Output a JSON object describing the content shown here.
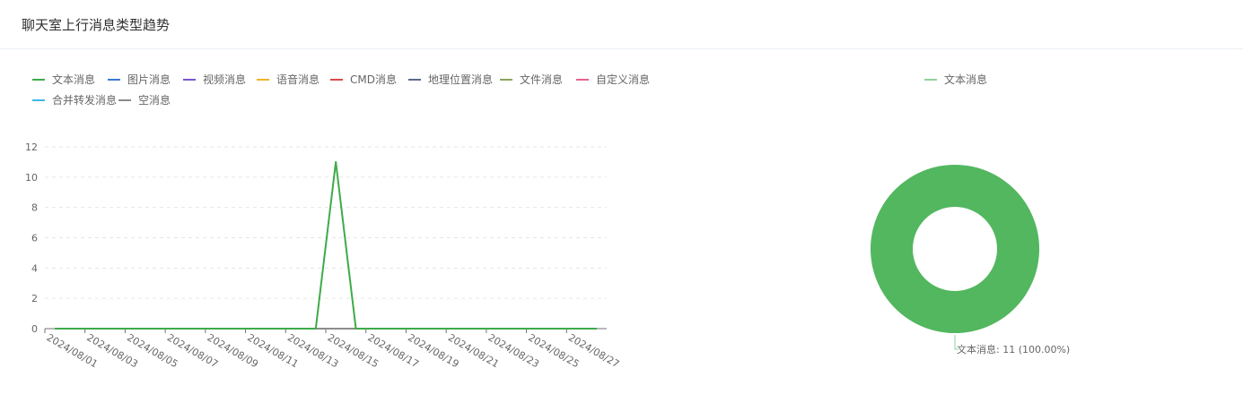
{
  "page": {
    "title": "聊天室上行消息类型趋势"
  },
  "legend": [
    {
      "label": "文本消息",
      "color": "#3eab49"
    },
    {
      "label": "图片消息",
      "color": "#3a7bd5"
    },
    {
      "label": "视频消息",
      "color": "#7a57d1"
    },
    {
      "label": "语音消息",
      "color": "#f0b429"
    },
    {
      "label": "CMD消息",
      "color": "#e04848"
    },
    {
      "label": "地理位置消息",
      "color": "#5a6b8c"
    },
    {
      "label": "文件消息",
      "color": "#8aa65a"
    },
    {
      "label": "自定义消息",
      "color": "#e8638f"
    },
    {
      "label": "合并转发消息",
      "color": "#3cb9e8"
    },
    {
      "label": "空消息",
      "color": "#8c8c8c"
    }
  ],
  "chart_data": [
    {
      "type": "line",
      "x": [
        "2024/08/01",
        "2024/08/02",
        "2024/08/03",
        "2024/08/04",
        "2024/08/05",
        "2024/08/06",
        "2024/08/07",
        "2024/08/08",
        "2024/08/09",
        "2024/08/10",
        "2024/08/11",
        "2024/08/12",
        "2024/08/13",
        "2024/08/14",
        "2024/08/15",
        "2024/08/16",
        "2024/08/17",
        "2024/08/18",
        "2024/08/19",
        "2024/08/20",
        "2024/08/21",
        "2024/08/22",
        "2024/08/23",
        "2024/08/24",
        "2024/08/25",
        "2024/08/26",
        "2024/08/27",
        "2024/08/28"
      ],
      "x_tick_labels": [
        "2024/08/01",
        "2024/08/03",
        "2024/08/05",
        "2024/08/07",
        "2024/08/09",
        "2024/08/11",
        "2024/08/13",
        "2024/08/15",
        "2024/08/17",
        "2024/08/19",
        "2024/08/21",
        "2024/08/23",
        "2024/08/25",
        "2024/08/27"
      ],
      "y_ticks": [
        0,
        2,
        4,
        6,
        8,
        10,
        12
      ],
      "ylim": [
        0,
        12
      ],
      "grid": true,
      "series": [
        {
          "name": "文本消息",
          "color": "#3eab49",
          "values": [
            0,
            0,
            0,
            0,
            0,
            0,
            0,
            0,
            0,
            0,
            0,
            0,
            0,
            0,
            11,
            0,
            0,
            0,
            0,
            0,
            0,
            0,
            0,
            0,
            0,
            0,
            0,
            0
          ]
        },
        {
          "name": "空消息",
          "color": "#8c8c8c",
          "values": [
            0,
            0,
            0,
            0,
            0,
            0,
            0,
            0,
            0,
            0,
            0,
            0,
            0,
            0,
            0,
            0,
            0,
            0,
            0,
            0,
            0,
            0,
            0,
            0,
            0,
            0,
            0,
            0
          ]
        }
      ]
    },
    {
      "type": "pie",
      "legend": [
        "文本消息"
      ],
      "slices": [
        {
          "name": "文本消息",
          "value": 11,
          "percent": "100.00%",
          "color": "#52b75f",
          "label": "文本消息: 11 (100.00%)"
        }
      ]
    }
  ]
}
